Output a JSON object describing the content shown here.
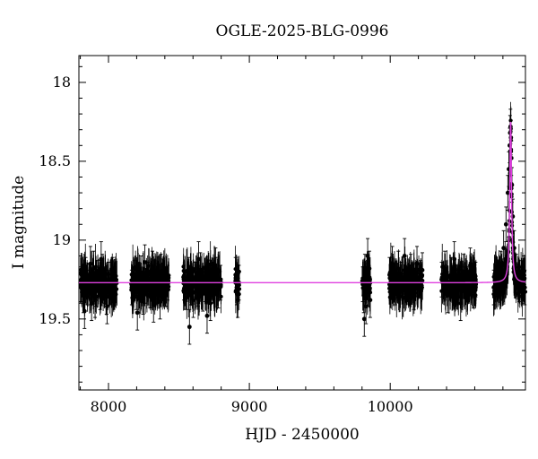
{
  "chart_data": {
    "type": "scatter",
    "title": "OGLE-2025-BLG-0996",
    "xlabel": "HJD - 2450000",
    "ylabel": "I magnitude",
    "xlim": [
      7790,
      10960
    ],
    "ylim": [
      19.95,
      17.83
    ],
    "y_inverted": true,
    "grid": false,
    "legend": "none",
    "colors": {
      "points": "#000000",
      "model": "#e040e0"
    },
    "x_ticks": [
      8000,
      9000,
      10000
    ],
    "x_tick_labels": [
      "8000",
      "9000",
      "10000"
    ],
    "y_ticks": [
      18,
      18.5,
      19,
      19.5
    ],
    "y_tick_labels": [
      "18",
      "18.5",
      "19",
      "19.5"
    ],
    "baseline_mag": 19.27,
    "peak": {
      "t0": 10855,
      "mag": 18.25,
      "width_days": 18
    },
    "observing_seasons": [
      {
        "start": 7800,
        "end": 8060
      },
      {
        "start": 8160,
        "end": 8430
      },
      {
        "start": 8530,
        "end": 8800
      },
      {
        "start": 8900,
        "end": 8930
      },
      {
        "start": 9800,
        "end": 9860
      },
      {
        "start": 9990,
        "end": 10230
      },
      {
        "start": 10360,
        "end": 10610
      },
      {
        "start": 10730,
        "end": 10960
      }
    ],
    "series": [
      {
        "kind": "observations",
        "x": [
          7805,
          7822,
          7838,
          7851,
          7866,
          7880,
          7895,
          7911,
          7927,
          7940,
          7956,
          7970,
          7986,
          8000,
          8015,
          8030,
          8047,
          7830,
          7872,
          7905,
          7948,
          7990,
          8022,
          8165,
          8182,
          8198,
          8214,
          8230,
          8246,
          8262,
          8280,
          8296,
          8312,
          8330,
          8348,
          8366,
          8385,
          8404,
          8420,
          8205,
          8258,
          8320,
          8372,
          8535,
          8551,
          8568,
          8585,
          8602,
          8618,
          8636,
          8652,
          8670,
          8688,
          8706,
          8724,
          8742,
          8760,
          8780,
          8796,
          8575,
          8640,
          8700,
          8760,
          8902,
          8910,
          8918,
          8926,
          9805,
          9812,
          9820,
          9828,
          9836,
          9844,
          9852,
          9858,
          9816,
          9840,
          9995,
          10015,
          10036,
          10058,
          10080,
          10102,
          10124,
          10146,
          10168,
          10190,
          10212,
          10228,
          10365,
          10388,
          10410,
          10432,
          10455,
          10478,
          10500,
          10522,
          10545,
          10568,
          10590,
          10606,
          10735,
          10760,
          10785,
          10805,
          10822,
          10835,
          10842,
          10848,
          10851,
          10854,
          10857,
          10860,
          10864,
          10870,
          10880,
          10895,
          10915,
          10935,
          10955
        ],
        "y": [
          19.28,
          19.35,
          19.22,
          19.3,
          19.26,
          19.4,
          19.18,
          19.31,
          19.24,
          19.33,
          19.2,
          19.29,
          19.36,
          19.25,
          19.3,
          19.22,
          19.28,
          19.45,
          19.15,
          19.38,
          19.12,
          19.42,
          19.27,
          19.3,
          19.24,
          19.33,
          19.27,
          19.21,
          19.36,
          19.29,
          19.25,
          19.32,
          19.18,
          19.3,
          19.26,
          19.39,
          19.23,
          19.31,
          19.27,
          19.46,
          19.14,
          19.41,
          19.2,
          19.27,
          19.33,
          19.22,
          19.3,
          19.38,
          19.25,
          19.31,
          19.19,
          19.34,
          19.28,
          19.24,
          19.4,
          19.29,
          19.22,
          19.32,
          19.27,
          19.55,
          19.12,
          19.48,
          19.16,
          19.22,
          19.3,
          19.38,
          19.27,
          19.28,
          19.35,
          19.2,
          19.42,
          19.26,
          19.31,
          19.18,
          19.38,
          19.5,
          19.1,
          19.22,
          19.15,
          19.3,
          19.18,
          19.25,
          19.1,
          19.28,
          19.2,
          19.33,
          19.15,
          19.24,
          19.19,
          19.25,
          19.18,
          19.35,
          19.22,
          19.12,
          19.3,
          19.4,
          19.2,
          19.28,
          19.16,
          19.32,
          19.25,
          19.3,
          19.25,
          19.18,
          19.05,
          18.9,
          18.7,
          18.55,
          18.4,
          18.32,
          18.28,
          18.35,
          18.48,
          18.65,
          18.85,
          19.05,
          19.2,
          19.28,
          19.24,
          19.3
        ],
        "error": 0.11
      },
      {
        "kind": "model",
        "type": "line"
      }
    ]
  }
}
